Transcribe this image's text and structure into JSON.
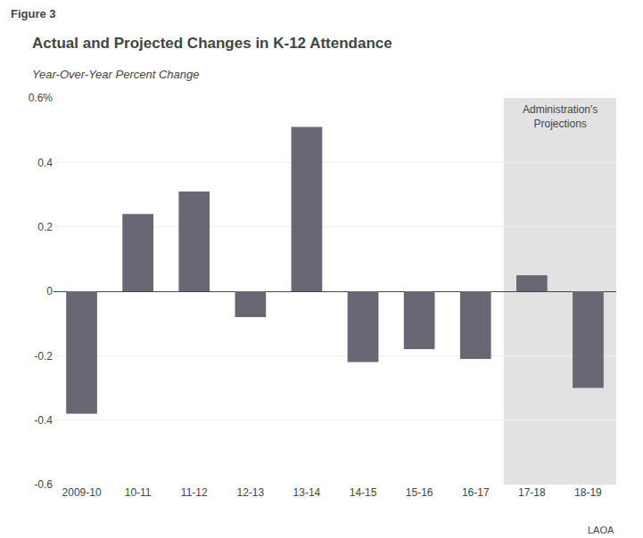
{
  "chart_data": {
    "type": "bar",
    "title": "Actual and Projected Changes in K-12 Attendance",
    "subtitle": "Year-Over-Year Percent Change",
    "categories": [
      "2009-10",
      "10-11",
      "11-12",
      "12-13",
      "13-14",
      "14-15",
      "15-16",
      "16-17",
      "17-18",
      "18-19"
    ],
    "values": [
      -0.38,
      0.24,
      0.31,
      -0.08,
      0.51,
      -0.22,
      -0.18,
      -0.21,
      0.05,
      -0.3
    ],
    "color": "#696773",
    "ylim": [
      -0.6,
      0.6
    ],
    "yticks": [
      -0.6,
      -0.4,
      -0.2,
      0,
      0.2,
      0.4,
      {
        "value": 0.6,
        "label": "0.6%"
      }
    ],
    "grid": true,
    "annotations": [
      {
        "text": "Figure 3"
      },
      {
        "text": "Administration's\nProjections",
        "categories": [
          "17-18",
          "18-19"
        ],
        "color": "#e2e2e2"
      },
      {
        "text": "LAOA"
      }
    ]
  }
}
